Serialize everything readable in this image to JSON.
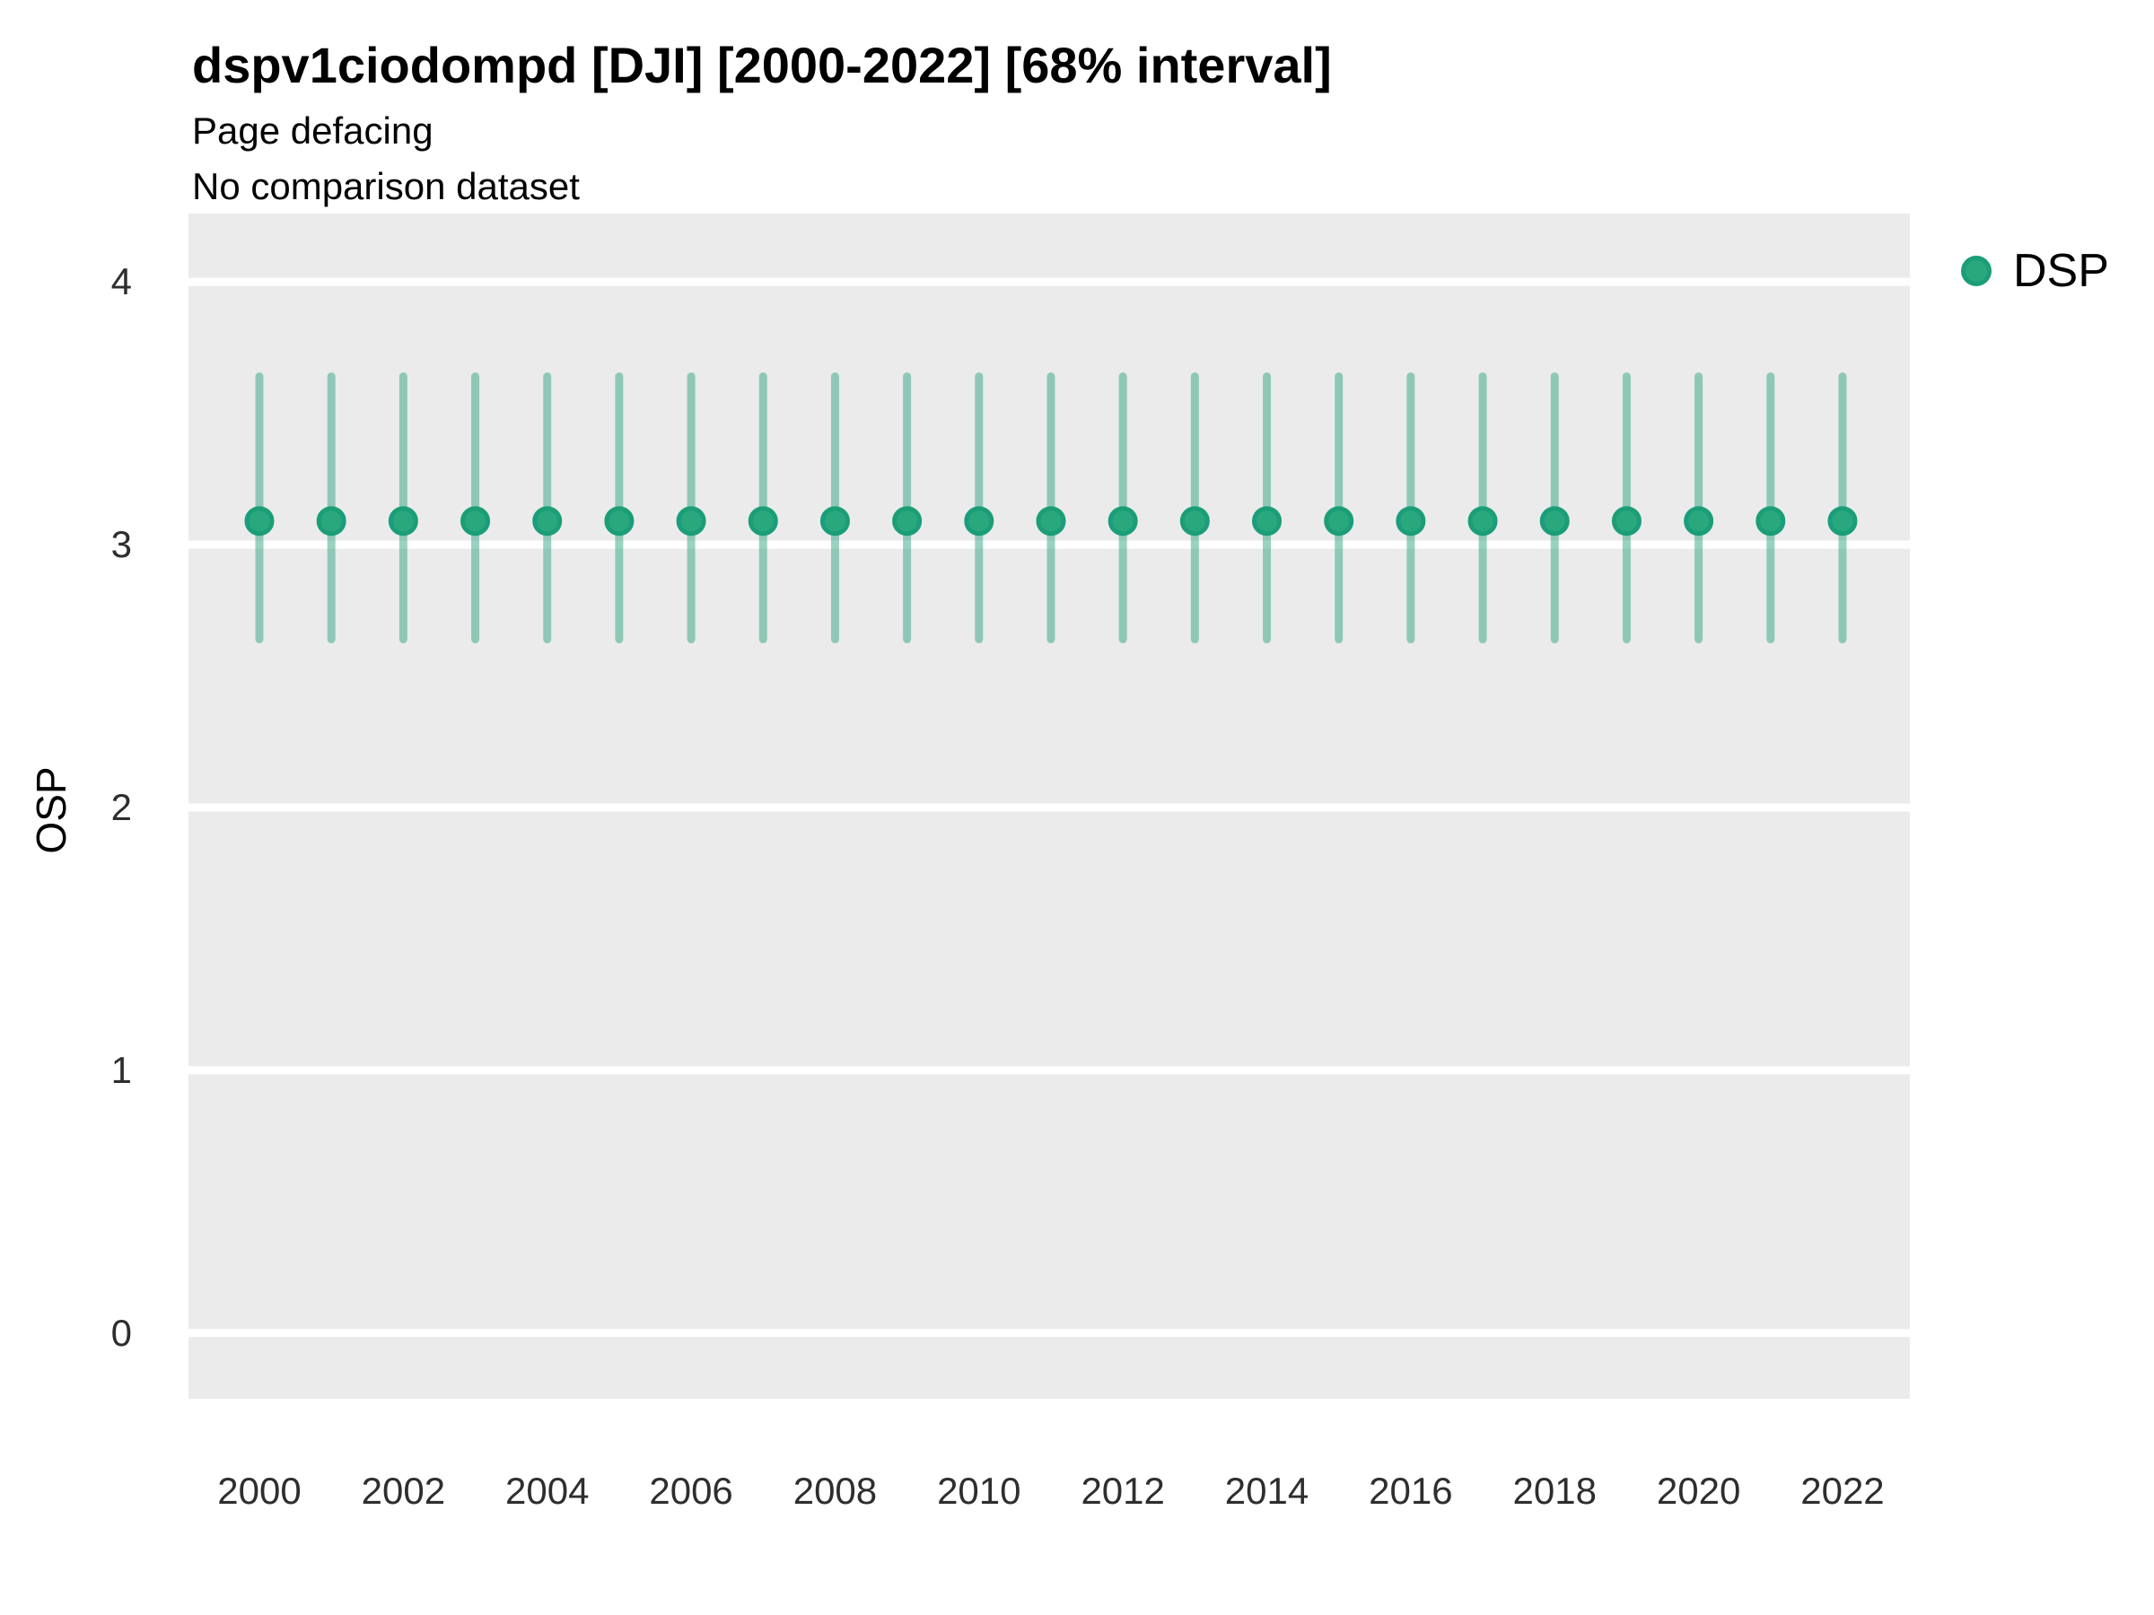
{
  "header": {
    "title": "dspv1ciodompd [DJI] [2000-2022] [68% interval]",
    "subtitle1": "Page defacing",
    "subtitle2": "No comparison dataset"
  },
  "legend": {
    "position": "right",
    "items": [
      {
        "label": "DSP",
        "marker": "circle-icon",
        "color": "#29a87e",
        "ring_color": "#1b9e77"
      }
    ]
  },
  "colors": {
    "panel_background": "#ebebeb",
    "gridline": "#ffffff",
    "point_fill": "#29a87e",
    "point_stroke": "#1b9e77",
    "interval_bar": "rgba(27,158,119,0.45)",
    "tick_text": "#2e2e2e",
    "title_text": "#000000"
  },
  "chart_data": {
    "type": "scatter",
    "title": "dspv1ciodompd [DJI] [2000-2022] [68% interval]",
    "subtitle": "Page defacing",
    "note": "No comparison dataset",
    "xlabel": "",
    "ylabel": "OSP",
    "interval": "68%",
    "x": [
      2000,
      2001,
      2002,
      2003,
      2004,
      2005,
      2006,
      2007,
      2008,
      2009,
      2010,
      2011,
      2012,
      2013,
      2014,
      2015,
      2016,
      2017,
      2018,
      2019,
      2020,
      2021,
      2022
    ],
    "series": [
      {
        "name": "DSP",
        "values": [
          3.09,
          3.09,
          3.09,
          3.09,
          3.09,
          3.09,
          3.09,
          3.09,
          3.09,
          3.09,
          3.09,
          3.09,
          3.09,
          3.09,
          3.09,
          3.09,
          3.09,
          3.09,
          3.09,
          3.09,
          3.09,
          3.09,
          3.09
        ],
        "interval_lower": [
          2.64,
          2.64,
          2.64,
          2.64,
          2.64,
          2.64,
          2.64,
          2.64,
          2.64,
          2.64,
          2.64,
          2.64,
          2.64,
          2.64,
          2.64,
          2.64,
          2.64,
          2.64,
          2.64,
          2.64,
          2.64,
          2.64,
          2.64
        ],
        "interval_upper": [
          3.64,
          3.64,
          3.64,
          3.64,
          3.64,
          3.64,
          3.64,
          3.64,
          3.64,
          3.64,
          3.64,
          3.64,
          3.64,
          3.64,
          3.64,
          3.64,
          3.64,
          3.64,
          3.64,
          3.64,
          3.64,
          3.64,
          3.64
        ]
      }
    ],
    "ylim": [
      -0.25,
      4.26
    ],
    "yticks": [
      0,
      1,
      2,
      3,
      4
    ],
    "xticks": [
      2000,
      2002,
      2004,
      2006,
      2008,
      2010,
      2012,
      2014,
      2016,
      2018,
      2020,
      2022
    ],
    "grid": "horizontal-major-only",
    "legend_position": "right"
  }
}
